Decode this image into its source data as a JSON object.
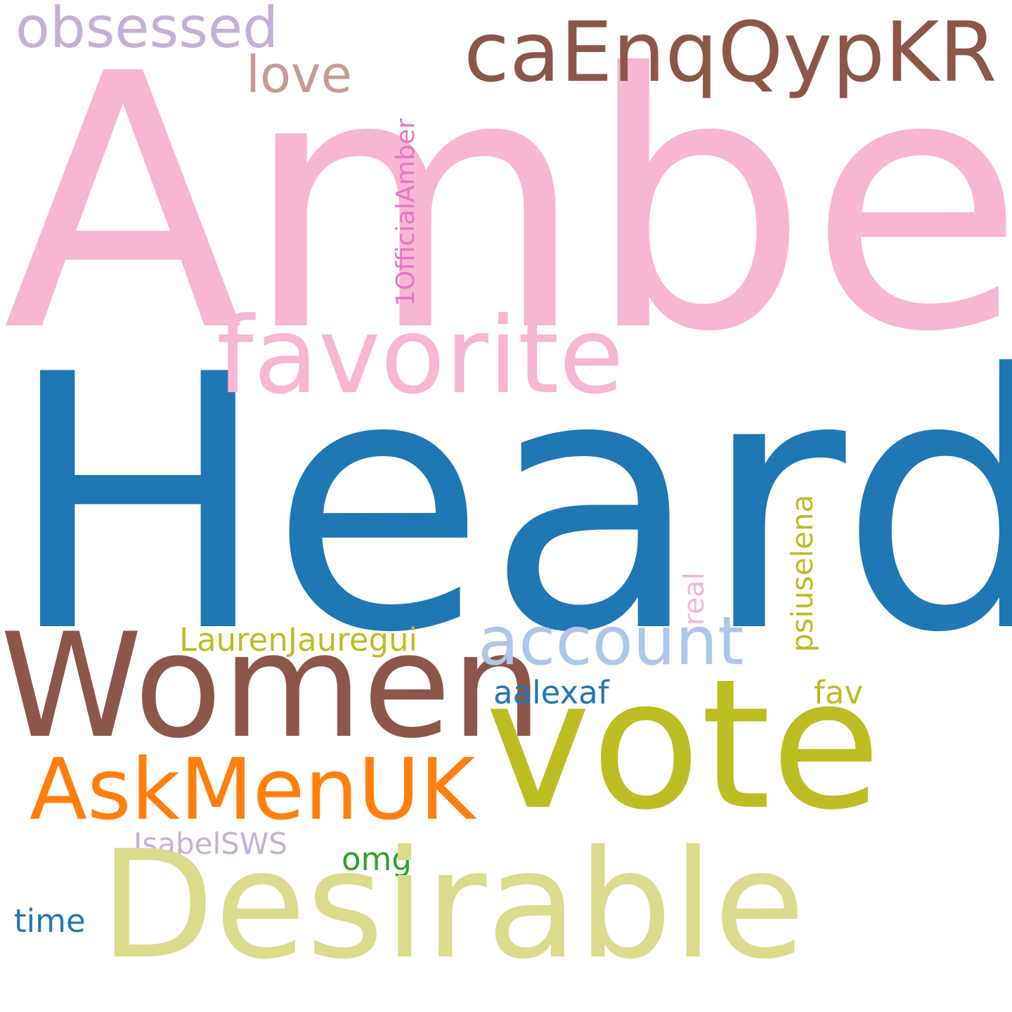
{
  "wordcloud": {
    "background": "#ffffff",
    "words": {
      "amber": {
        "text": "Amber",
        "color": "#f7b6d2"
      },
      "heard": {
        "text": "Heard",
        "color": "#1f77b4"
      },
      "women": {
        "text": "Women",
        "color": "#8c564b"
      },
      "vote": {
        "text": "vote",
        "color": "#bcbd22"
      },
      "desirable": {
        "text": "Desirable",
        "color": "#dbdb8d"
      },
      "favorite": {
        "text": "favorite",
        "color": "#f7b6d2"
      },
      "caenq": {
        "text": "caEnqQypKR",
        "color": "#8c564b"
      },
      "askmenuk": {
        "text": "AskMenUK",
        "color": "#ff7f0e"
      },
      "account": {
        "text": "account",
        "color": "#aec7e8"
      },
      "obsessed": {
        "text": "obsessed",
        "color": "#c5b0d5"
      },
      "love": {
        "text": "love",
        "color": "#c49c94"
      },
      "official": {
        "text": "1OfficialAmber",
        "color": "#e377c2"
      },
      "psiuselena": {
        "text": "psiuselena",
        "color": "#bcbd22"
      },
      "real": {
        "text": "real",
        "color": "#f7b6d2"
      },
      "lauren": {
        "text": "LaurenJauregui",
        "color": "#bcbd22"
      },
      "aalexaf": {
        "text": "aalexaf",
        "color": "#1f77b4"
      },
      "fav": {
        "text": "fav",
        "color": "#bcbd22"
      },
      "isabel": {
        "text": "IsabelSWS",
        "color": "#c5b0d5"
      },
      "omg": {
        "text": "omg",
        "color": "#2ca02c"
      },
      "time": {
        "text": "time",
        "color": "#1f77b4"
      }
    }
  }
}
